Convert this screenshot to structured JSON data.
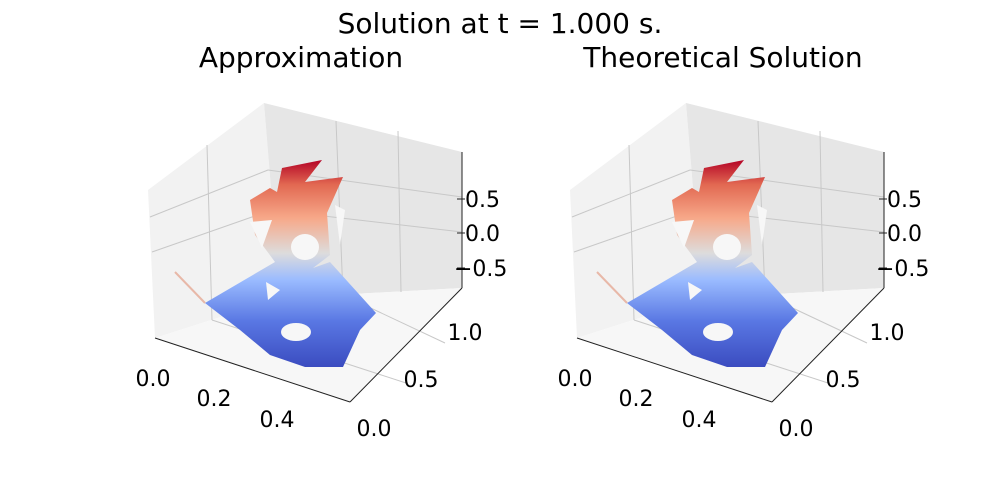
{
  "figure": {
    "suptitle": "Solution at t = 1.000 s."
  },
  "colors": {
    "cmap_low": "#3b4cc0",
    "cmap_mid": "#dddcdc",
    "cmap_high": "#b40426",
    "pane_left": "#f2f2f2",
    "pane_right": "#e6e6e6",
    "pane_floor": "#f7f7f7",
    "grid": "#c8c8c8"
  },
  "chart_data": [
    {
      "type": "surface3d",
      "title": "Approximation",
      "colormap": "coolwarm",
      "grid": true,
      "x_ticks": [
        "0.0",
        "0.2",
        "0.4"
      ],
      "y_ticks": [
        "0.0",
        "0.5",
        "1.0"
      ],
      "z_ticks": [
        "0.5",
        "0.0",
        "−0.5"
      ],
      "xlim": [
        0,
        0.55
      ],
      "ylim": [
        0,
        1.1
      ],
      "zlim": [
        -0.95,
        0.95
      ]
    },
    {
      "type": "surface3d",
      "title": "Theoretical Solution",
      "colormap": "coolwarm",
      "grid": true,
      "x_ticks": [
        "0.0",
        "0.2",
        "0.4"
      ],
      "y_ticks": [
        "0.0",
        "0.5",
        "1.0"
      ],
      "z_ticks": [
        "0.5",
        "0.0",
        "−0.5"
      ],
      "xlim": [
        0,
        0.55
      ],
      "ylim": [
        0,
        1.1
      ],
      "zlim": [
        -0.95,
        0.95
      ]
    }
  ]
}
